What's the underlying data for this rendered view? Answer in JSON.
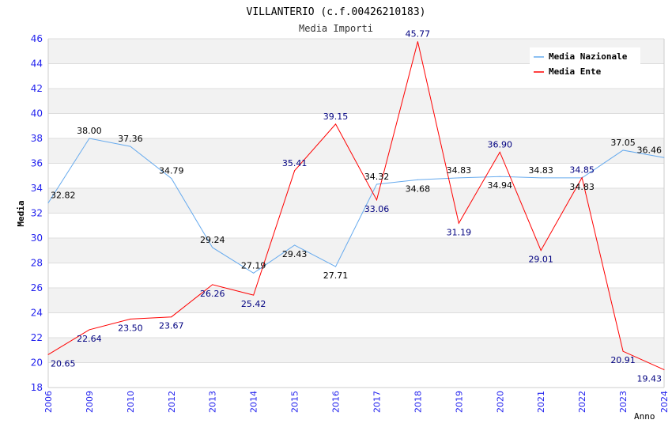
{
  "chart_data": {
    "type": "line",
    "title": "VILLANTERIO (c.f.00426210183)",
    "subtitle": "Media Importi",
    "xlabel": "Anno",
    "ylabel": "Media",
    "ylim": [
      18,
      46
    ],
    "yticks": [
      "18",
      "20",
      "22",
      "24",
      "26",
      "28",
      "30",
      "32",
      "34",
      "36",
      "38",
      "40",
      "42",
      "44",
      "46"
    ],
    "categories": [
      "2006",
      "2009",
      "2010",
      "2012",
      "2013",
      "2014",
      "2015",
      "2016",
      "2017",
      "2018",
      "2019",
      "2020",
      "2021",
      "2022",
      "2023",
      "2024"
    ],
    "grid": true,
    "legend_position": "top-right",
    "series": [
      {
        "name": "Media Nazionale",
        "color": "#66aaee",
        "label_color": "#000000",
        "values": [
          32.82,
          38.0,
          37.36,
          34.79,
          29.24,
          27.19,
          29.43,
          27.71,
          34.32,
          34.68,
          34.83,
          34.94,
          34.83,
          34.83,
          37.05,
          36.46
        ]
      },
      {
        "name": "Media Ente",
        "color": "#ff0000",
        "label_color": "#000080",
        "values": [
          20.65,
          22.64,
          23.5,
          23.67,
          26.26,
          25.42,
          35.41,
          39.15,
          33.06,
          45.77,
          31.19,
          36.9,
          29.01,
          34.85,
          20.91,
          19.43
        ]
      }
    ]
  }
}
